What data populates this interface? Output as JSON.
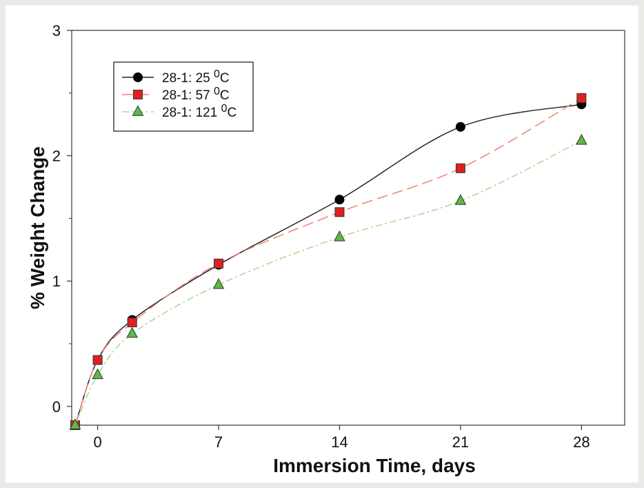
{
  "chart_data": {
    "type": "line",
    "xlabel": "Immersion Time, days",
    "ylabel": "% Weight Change",
    "x_ticks": [
      0,
      7,
      14,
      21,
      28
    ],
    "y_ticks": [
      0,
      1,
      2,
      3
    ],
    "xlim": [
      -1.5,
      30.5
    ],
    "ylim": [
      -0.15,
      3
    ],
    "grid": false,
    "legend_position": "top-left",
    "series": [
      {
        "name": "28-1:  25 0C",
        "label_main": "28-1:  25 ",
        "label_sup": "0",
        "label_unit": "C",
        "color": "#000000",
        "line_color": "#222222",
        "marker": "circle",
        "dash": "solid",
        "x": [
          -1.3,
          0,
          2,
          7,
          14,
          21,
          28
        ],
        "y": [
          -0.15,
          0.37,
          0.69,
          1.13,
          1.65,
          2.23,
          2.41
        ]
      },
      {
        "name": "28-1:  57 0C",
        "label_main": "28-1:  57 ",
        "label_sup": "0",
        "label_unit": "C",
        "color": "#e02020",
        "line_color": "#f08070",
        "marker": "square",
        "dash": "long-dash",
        "x": [
          -1.3,
          0,
          2,
          7,
          14,
          21,
          28
        ],
        "y": [
          -0.15,
          0.37,
          0.67,
          1.14,
          1.55,
          1.9,
          2.46
        ]
      },
      {
        "name": "28-1:  121 0C",
        "label_main": "28-1:  121 ",
        "label_sup": "0",
        "label_unit": "C",
        "color": "#5cb848",
        "line_color": "#a8d890",
        "marker": "triangle",
        "dash": "dash-dot",
        "x": [
          -1.3,
          0,
          2,
          7,
          14,
          21,
          28
        ],
        "y": [
          -0.15,
          0.25,
          0.58,
          0.97,
          1.35,
          1.64,
          2.12
        ]
      }
    ]
  }
}
